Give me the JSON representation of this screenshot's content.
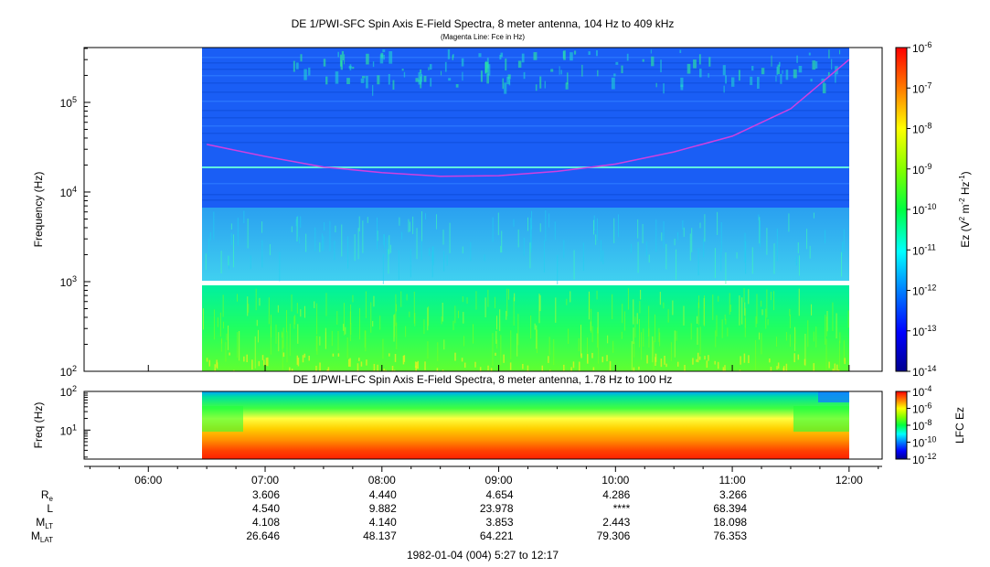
{
  "chart_data": [
    {
      "type": "heatmap",
      "title": "DE 1/PWI-SFC  Spin Axis E-Field Spectra, 8 meter antenna, 104 Hz to 409 kHz",
      "subtitle": "(Magenta Line: Fce in Hz)",
      "ylabel": "Frequency (Hz)",
      "yscale": "log",
      "ylim": [
        100,
        409000
      ],
      "y_ticks": [
        {
          "value": 100,
          "base": "10",
          "exp": "2"
        },
        {
          "value": 1000,
          "base": "10",
          "exp": "3"
        },
        {
          "value": 10000,
          "base": "10",
          "exp": "4"
        },
        {
          "value": 100000,
          "base": "10",
          "exp": "5"
        }
      ],
      "xlim_hours": [
        5.45,
        12.283
      ],
      "data_start_hour": 6.45,
      "data_end_hour": 12.0,
      "colorbar": {
        "label": "Ez (V² m⁻² Hz⁻¹)",
        "label_parts": {
          "a": "Ez (V",
          "a_sup": "2",
          "b": " m",
          "b_sup": "-2",
          "c": " Hz",
          "c_sup": "-1",
          "d": ")"
        },
        "scale": "log",
        "range": [
          1e-14,
          1e-06
        ],
        "ticks": [
          {
            "value": 1e-06,
            "base": "10",
            "exp": "-6"
          },
          {
            "value": 1e-07,
            "base": "10",
            "exp": "-7"
          },
          {
            "value": 1e-08,
            "base": "10",
            "exp": "-8"
          },
          {
            "value": 1e-09,
            "base": "10",
            "exp": "-9"
          },
          {
            "value": 1e-10,
            "base": "10",
            "exp": "-10"
          },
          {
            "value": 1e-11,
            "base": "10",
            "exp": "-11"
          },
          {
            "value": 1e-12,
            "base": "10",
            "exp": "-12"
          },
          {
            "value": 1e-13,
            "base": "10",
            "exp": "-13"
          },
          {
            "value": 1e-14,
            "base": "10",
            "exp": "-14"
          }
        ]
      },
      "fce_line": {
        "color": "#d040e0",
        "points": [
          [
            6.5,
            34000
          ],
          [
            7.0,
            25000
          ],
          [
            7.5,
            19000
          ],
          [
            8.0,
            16500
          ],
          [
            8.5,
            15000
          ],
          [
            9.0,
            15200
          ],
          [
            9.5,
            17000
          ],
          [
            10.0,
            20500
          ],
          [
            10.5,
            28000
          ],
          [
            11.0,
            42000
          ],
          [
            11.5,
            85000
          ],
          [
            12.0,
            300000
          ]
        ]
      },
      "bands": [
        {
          "f_low": 6500,
          "f_high": 409000,
          "level_log": -13.0
        },
        {
          "f_low": 1000,
          "f_high": 6500,
          "level_log": -12.2
        },
        {
          "f_low": 100,
          "f_high": 900,
          "level_log": -10.8
        }
      ]
    },
    {
      "type": "heatmap",
      "title": "DE 1/PWI-LFC  Spin Axis E-Field Spectra, 8 meter antenna, 1.78 Hz to 100 Hz",
      "ylabel": "Freq (Hz)",
      "yscale": "log",
      "ylim": [
        1.78,
        100
      ],
      "y_ticks": [
        {
          "value": 10,
          "base": "10",
          "exp": "1"
        },
        {
          "value": 100,
          "base": "10",
          "exp": "2"
        }
      ],
      "colorbar": {
        "label": "LFC Ez",
        "scale": "log",
        "range": [
          1e-12,
          0.0001
        ],
        "ticks": [
          {
            "value": 0.0001,
            "base": "10",
            "exp": "-4"
          },
          {
            "value": 1e-06,
            "base": "10",
            "exp": "-6"
          },
          {
            "value": 1e-08,
            "base": "10",
            "exp": "-8"
          },
          {
            "value": 1e-10,
            "base": "10",
            "exp": "-10"
          },
          {
            "value": 1e-12,
            "base": "10",
            "exp": "-12"
          }
        ]
      }
    }
  ],
  "x_axis": {
    "ticks": [
      {
        "hour": 6.0,
        "label": "06:00"
      },
      {
        "hour": 7.0,
        "label": "07:00"
      },
      {
        "hour": 8.0,
        "label": "08:00"
      },
      {
        "hour": 9.0,
        "label": "09:00"
      },
      {
        "hour": 10.0,
        "label": "10:00"
      },
      {
        "hour": 11.0,
        "label": "11:00"
      },
      {
        "hour": 12.0,
        "label": "12:00"
      }
    ]
  },
  "ephemeris": {
    "rows": [
      {
        "label": "R",
        "sub": "e",
        "values": [
          "3.606",
          "4.440",
          "4.654",
          "4.286",
          "3.266"
        ]
      },
      {
        "label": "L",
        "sub": "",
        "values": [
          "4.540",
          "9.882",
          "23.978",
          "****",
          "68.394"
        ]
      },
      {
        "label": "M",
        "sub": "LT",
        "values": [
          "4.108",
          "4.140",
          "3.853",
          "2.443",
          "18.098"
        ]
      },
      {
        "label": "M",
        "sub": "LAT",
        "values": [
          "26.646",
          "48.137",
          "64.221",
          "79.306",
          "76.353"
        ]
      }
    ],
    "value_hours": [
      7.0,
      8.0,
      9.0,
      10.0,
      11.0
    ]
  },
  "footer": "1982-01-04 (004) 5:27 to 12:17"
}
